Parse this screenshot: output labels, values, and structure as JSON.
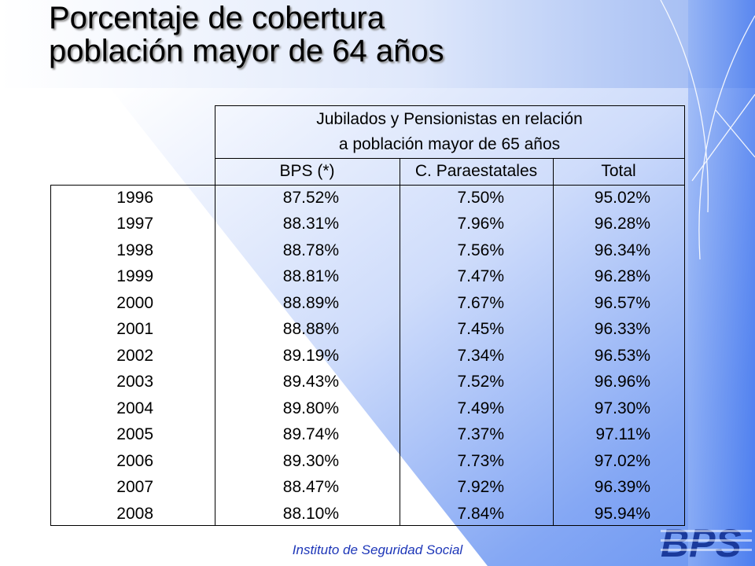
{
  "slide": {
    "title_line1": "Porcentaje de cobertura",
    "title_line2": "población mayor de 64 años",
    "footer": "Instituto de Seguridad Social",
    "logo_text": "BPS"
  },
  "table": {
    "group_header_line1": "Jubilados y Pensionistas en relación",
    "group_header_line2": "a población mayor de 65 años",
    "columns": [
      "BPS (*)",
      "C. Paraestatales",
      "Total"
    ],
    "rows": [
      [
        "1996",
        "87.52%",
        "7.50%",
        "95.02%"
      ],
      [
        "1997",
        "88.31%",
        "7.96%",
        "96.28%"
      ],
      [
        "1998",
        "88.78%",
        "7.56%",
        "96.34%"
      ],
      [
        "1999",
        "88.81%",
        "7.47%",
        "96.28%"
      ],
      [
        "2000",
        "88.89%",
        "7.67%",
        "96.57%"
      ],
      [
        "2001",
        "88.88%",
        "7.45%",
        "96.33%"
      ],
      [
        "2002",
        "89.19%",
        "7.34%",
        "96.53%"
      ],
      [
        "2003",
        "89.43%",
        "7.52%",
        "96.96%"
      ],
      [
        "2004",
        "89.80%",
        "7.49%",
        "97.30%"
      ],
      [
        "2005",
        "89.74%",
        "7.37%",
        "97.11%"
      ],
      [
        "2006",
        "89.30%",
        "7.73%",
        "97.02%"
      ],
      [
        "2007",
        "88.47%",
        "7.92%",
        "96.39%"
      ],
      [
        "2008",
        "88.10%",
        "7.84%",
        "95.94%"
      ]
    ]
  },
  "colors": {
    "accent": "#3f74ee",
    "logo": "#1a3a9c",
    "footer_text": "#1d36b8"
  }
}
